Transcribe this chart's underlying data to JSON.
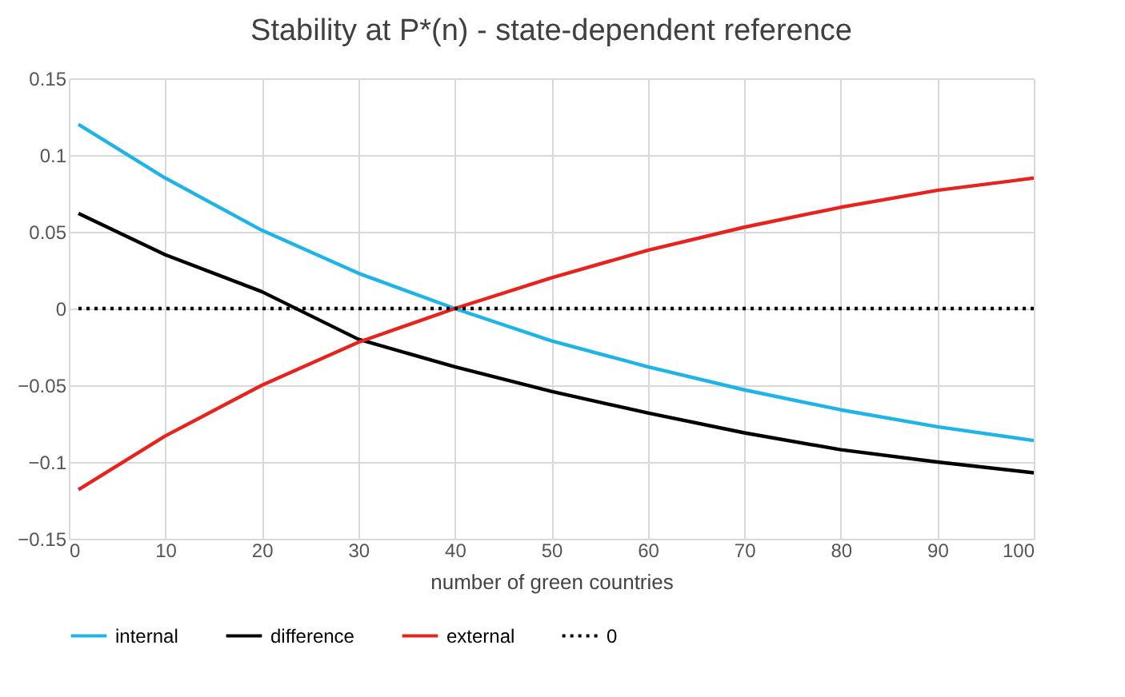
{
  "chart_data": {
    "type": "line",
    "title": "Stability at P*(n) - state-dependent reference",
    "xlabel": "number of green countries",
    "x": [
      1,
      10,
      20,
      30,
      40,
      50,
      60,
      70,
      80,
      90,
      100
    ],
    "series": [
      {
        "name": "internal",
        "color": "#1fb4e8",
        "values": [
          0.12,
          0.085,
          0.051,
          0.023,
          0.0,
          -0.021,
          -0.038,
          -0.053,
          -0.066,
          -0.077,
          -0.086
        ]
      },
      {
        "name": "difference",
        "color": "#000000",
        "values": [
          0.062,
          0.035,
          0.011,
          -0.02,
          -0.038,
          -0.054,
          -0.068,
          -0.081,
          -0.092,
          -0.1,
          -0.107
        ]
      },
      {
        "name": "external",
        "color": "#e8231d",
        "values": [
          -0.118,
          -0.083,
          -0.05,
          -0.022,
          0.0,
          0.02,
          0.038,
          0.053,
          0.066,
          0.077,
          0.085
        ]
      },
      {
        "name": "0",
        "color": "#000000",
        "x": [
          1,
          100
        ],
        "values": [
          0,
          0
        ],
        "line_style": "dotted"
      }
    ],
    "xlim": [
      0,
      100
    ],
    "xticks": [
      0,
      10,
      20,
      30,
      40,
      50,
      60,
      70,
      80,
      90,
      100
    ],
    "ylim": [
      -0.15,
      0.15
    ],
    "yticks": [
      -0.15,
      -0.1,
      -0.05,
      0,
      0.05,
      0.1,
      0.15
    ],
    "grid": true,
    "legend": "bottom",
    "line_style": "solid"
  }
}
